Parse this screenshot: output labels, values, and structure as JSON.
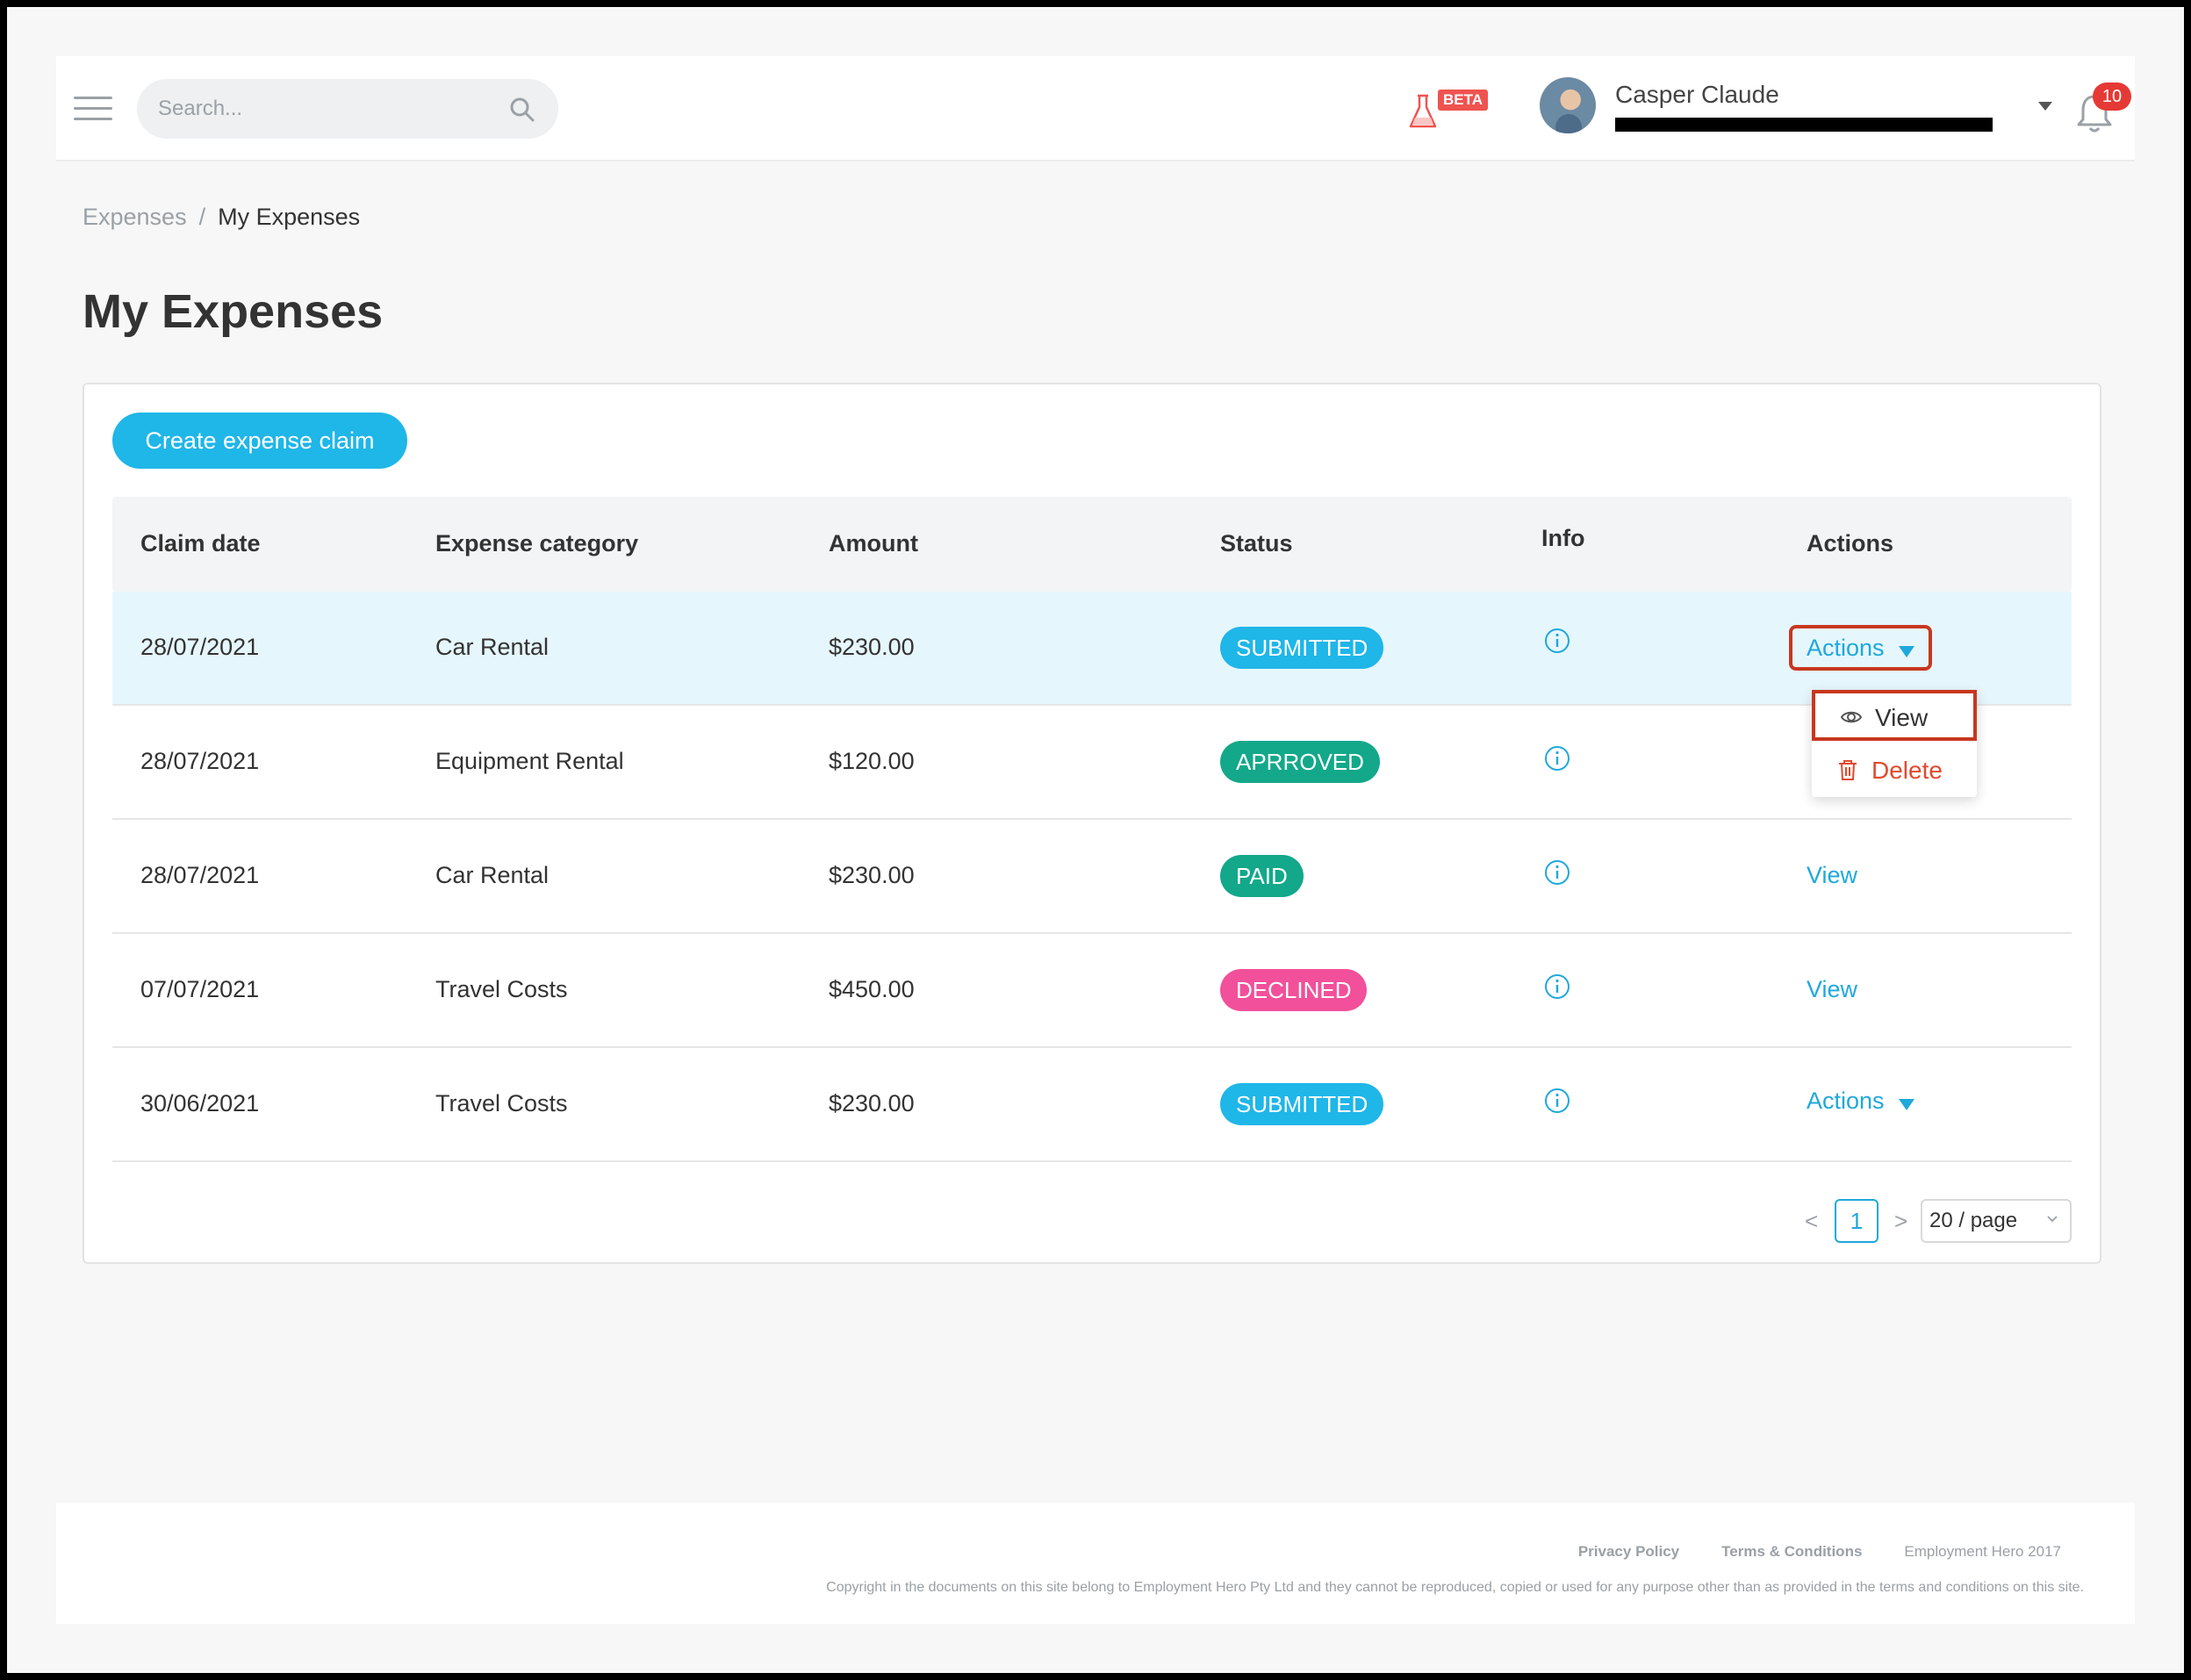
{
  "header": {
    "search_placeholder": "Search...",
    "beta_label": "BETA",
    "user_name": "Casper Claude",
    "user_email": "[redacted]",
    "notification_count": "10"
  },
  "breadcrumb": {
    "parent": "Expenses",
    "separator": "/",
    "current": "My Expenses"
  },
  "page": {
    "title": "My Expenses",
    "create_button": "Create expense claim"
  },
  "table": {
    "columns": {
      "claim_date": "Claim date",
      "category": "Expense category",
      "amount": "Amount",
      "status": "Status",
      "info": "Info",
      "actions": "Actions"
    },
    "rows": [
      {
        "date": "28/07/2021",
        "category": "Car Rental",
        "amount": "$230.00",
        "status": "SUBMITTED",
        "action": "Actions"
      },
      {
        "date": "28/07/2021",
        "category": "Equipment Rental",
        "amount": "$120.00",
        "status": "APRROVED",
        "action": ""
      },
      {
        "date": "28/07/2021",
        "category": "Car Rental",
        "amount": "$230.00",
        "status": "PAID",
        "action": "View"
      },
      {
        "date": "07/07/2021",
        "category": "Travel Costs",
        "amount": "$450.00",
        "status": "DECLINED",
        "action": "View"
      },
      {
        "date": "30/06/2021",
        "category": "Travel Costs",
        "amount": "$230.00",
        "status": "SUBMITTED",
        "action": "Actions"
      }
    ]
  },
  "actions_menu": {
    "view": "View",
    "delete": "Delete"
  },
  "pagination": {
    "prev": "<",
    "current_page": "1",
    "next": ">",
    "page_size": "20 / page"
  },
  "footer": {
    "privacy": "Privacy Policy",
    "terms": "Terms & Conditions",
    "company": "Employment Hero 2017",
    "copyright": "Copyright in the documents on this site belong to Employment Hero Pty Ltd and they cannot be reproduced, copied or used for any purpose other than as provided in the terms and conditions on this site."
  },
  "colors": {
    "accent": "#1fb6e8",
    "link": "#1fa8db",
    "submitted": "#1fb6e8",
    "approved": "#13a88a",
    "paid": "#13a88a",
    "declined": "#f2509b",
    "danger": "#e04a2e",
    "highlight_border": "#c8371f"
  }
}
